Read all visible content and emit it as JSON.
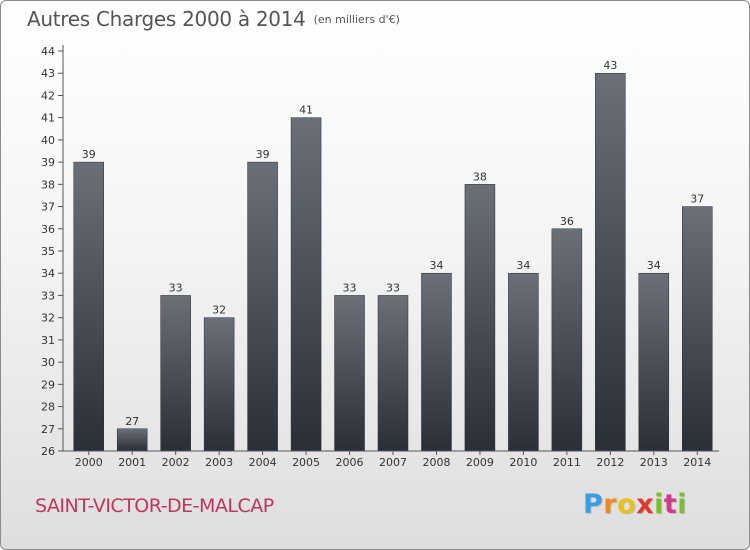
{
  "chart_data": {
    "type": "bar",
    "title": "Autres Charges 2000 à 2014",
    "subtitle": "(en milliers d'€)",
    "categories": [
      "2000",
      "2001",
      "2002",
      "2003",
      "2004",
      "2005",
      "2006",
      "2007",
      "2008",
      "2009",
      "2010",
      "2011",
      "2012",
      "2013",
      "2014"
    ],
    "values": [
      39,
      27,
      33,
      32,
      39,
      41,
      33,
      33,
      34,
      38,
      34,
      36,
      43,
      34,
      37
    ],
    "ylim": [
      26,
      44
    ],
    "yticks": [
      26,
      27,
      28,
      29,
      30,
      31,
      32,
      33,
      34,
      35,
      36,
      37,
      38,
      39,
      40,
      41,
      42,
      43,
      44
    ],
    "grid": false,
    "bar_color": "#3c4047"
  },
  "footer": {
    "town": "SAINT-VICTOR-DE-MALCAP",
    "logo_letters": [
      "P",
      "r",
      "o",
      "x",
      "i",
      "t",
      "i"
    ]
  }
}
